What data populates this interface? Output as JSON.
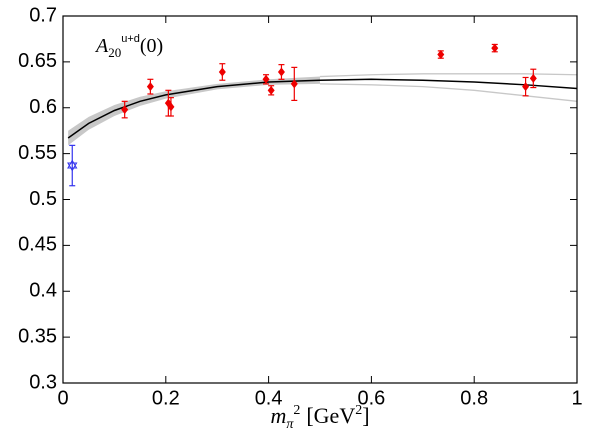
{
  "chart_data": {
    "type": "scatter",
    "annotation": {
      "base": "A",
      "sub": "20",
      "sup": "u+d",
      "tail": "(0)"
    },
    "xlabel": {
      "base": "m",
      "sub": "π",
      "sup": "2",
      "unit": "[GeV",
      "unit_sup": "2",
      "unit_end": "]"
    },
    "xlim": [
      0,
      1
    ],
    "xticks": [
      0,
      0.2,
      0.4,
      0.6,
      0.8,
      1
    ],
    "ylim": [
      0.3,
      0.7
    ],
    "yticks": [
      0.3,
      0.35,
      0.4,
      0.45,
      0.5,
      0.55,
      0.6,
      0.65,
      0.7
    ],
    "points": {
      "color": "#ee0000",
      "x": [
        0.12,
        0.17,
        0.205,
        0.21,
        0.31,
        0.395,
        0.405,
        0.425,
        0.45,
        0.735,
        0.84,
        0.9,
        0.915
      ],
      "values": [
        0.598,
        0.623,
        0.605,
        0.601,
        0.639,
        0.631,
        0.619,
        0.639,
        0.626,
        0.658,
        0.665,
        0.623,
        0.632
      ],
      "errors": [
        0.009,
        0.008,
        0.014,
        0.01,
        0.009,
        0.005,
        0.005,
        0.008,
        0.018,
        0.004,
        0.004,
        0.01,
        0.01
      ]
    },
    "star": {
      "color": "#3333ee",
      "x": [
        0.018
      ],
      "values": [
        0.537
      ],
      "errors": [
        0.022
      ]
    },
    "fit": {
      "color": "#000000",
      "band_color": "#c8c8c8",
      "band_end": 0.5,
      "x": [
        0.01,
        0.05,
        0.1,
        0.15,
        0.2,
        0.3,
        0.4,
        0.5,
        0.6,
        0.7,
        0.8,
        0.9,
        1.0
      ],
      "values": [
        0.567,
        0.583,
        0.597,
        0.607,
        0.614,
        0.623,
        0.628,
        0.63,
        0.631,
        0.63,
        0.628,
        0.625,
        0.621
      ],
      "upper": [
        0.575,
        0.59,
        0.603,
        0.612,
        0.618,
        0.626,
        0.631,
        0.634,
        0.636,
        0.637,
        0.637,
        0.637,
        0.636
      ],
      "lower": [
        0.559,
        0.576,
        0.591,
        0.602,
        0.61,
        0.62,
        0.625,
        0.626,
        0.625,
        0.623,
        0.619,
        0.613,
        0.607
      ]
    }
  }
}
